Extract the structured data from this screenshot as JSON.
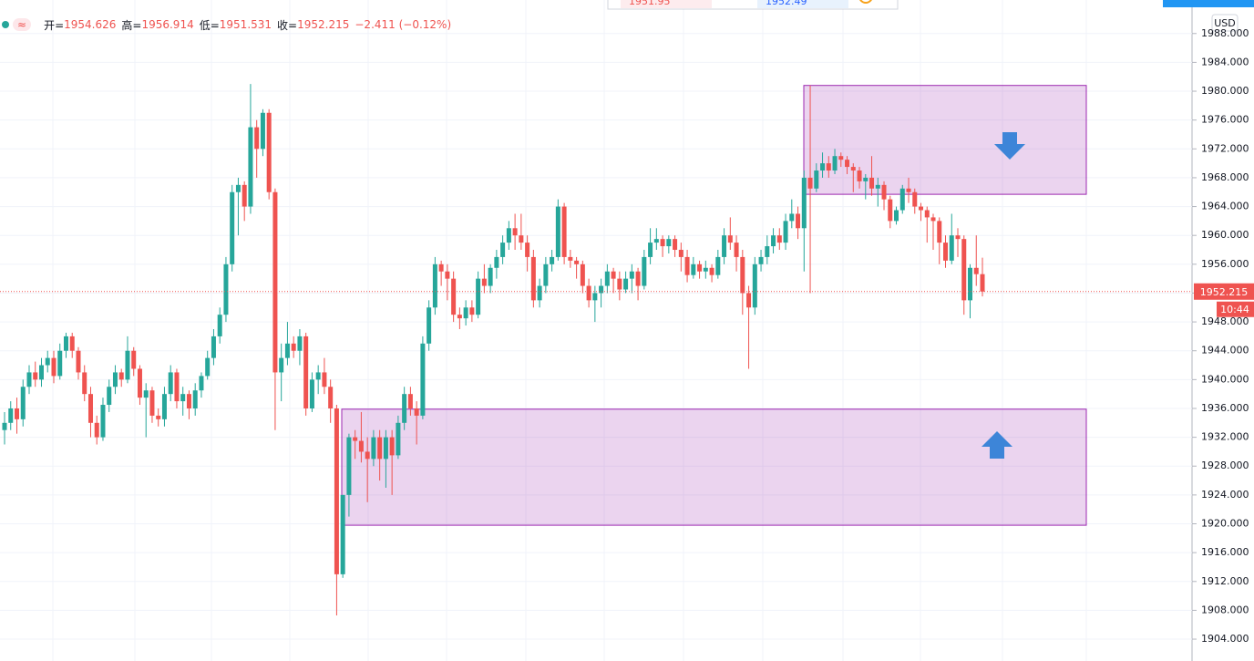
{
  "chart_data": {
    "type": "candlestick",
    "header": [
      {
        "label": "开=",
        "value": "1954.626"
      },
      {
        "label": "高=",
        "value": "1956.914"
      },
      {
        "label": "低=",
        "value": "1951.531"
      },
      {
        "label": "收=",
        "value": "1952.215"
      }
    ],
    "change": "−2.411 (−0.12%)",
    "badge": "≈",
    "currency": "USD",
    "countdown": "10:44",
    "top_quotes": [
      "1951.95",
      "1952.49"
    ],
    "up_color": "#26a69a",
    "down_color": "#ef5350",
    "zone_color": "#9c27b0",
    "grid": true,
    "ylim": [
      1900.97,
      1992.65
    ],
    "yticks": [
      {
        "value": 1904,
        "label": "1904.000"
      },
      {
        "value": 1908,
        "label": "1908.000"
      },
      {
        "value": 1912,
        "label": "1912.000"
      },
      {
        "value": 1916,
        "label": "1916.000"
      },
      {
        "value": 1920,
        "label": "1920.000"
      },
      {
        "value": 1924,
        "label": "1924.000"
      },
      {
        "value": 1928,
        "label": "1928.000"
      },
      {
        "value": 1932,
        "label": "1932.000"
      },
      {
        "value": 1936,
        "label": "1936.000"
      },
      {
        "value": 1940,
        "label": "1940.000"
      },
      {
        "value": 1944,
        "label": "1944.000"
      },
      {
        "value": 1948,
        "label": "1948.000"
      },
      {
        "value": 1952,
        "label": "1952.000"
      },
      {
        "value": 1956,
        "label": "1956.000"
      },
      {
        "value": 1960,
        "label": "1960.000"
      },
      {
        "value": 1964,
        "label": "1964.000"
      },
      {
        "value": 1968,
        "label": "1968.000"
      },
      {
        "value": 1972,
        "label": "1972.000"
      },
      {
        "value": 1976,
        "label": "1976.000"
      },
      {
        "value": 1980,
        "label": "1980.000"
      },
      {
        "value": 1984,
        "label": "1984.000"
      },
      {
        "value": 1988,
        "label": "1988.000"
      }
    ],
    "zones": [
      {
        "high": 1980.8,
        "low": 1965.7
      },
      {
        "high": 1935.9,
        "low": 1919.8
      }
    ],
    "ohlc": [
      [
        1933,
        1935.5,
        1931,
        1934
      ],
      [
        1934,
        1937,
        1933,
        1936
      ],
      [
        1936,
        1937.5,
        1932.5,
        1934.5
      ],
      [
        1934.5,
        1940,
        1933.5,
        1939
      ],
      [
        1939,
        1942,
        1938,
        1941
      ],
      [
        1941,
        1942.5,
        1939,
        1940
      ],
      [
        1940,
        1943,
        1939,
        1942
      ],
      [
        1942,
        1944,
        1941,
        1943
      ],
      [
        1943,
        1944,
        1939.5,
        1940.5
      ],
      [
        1940.5,
        1945,
        1940,
        1944
      ],
      [
        1944,
        1946.5,
        1943,
        1946
      ],
      [
        1946,
        1946.5,
        1943,
        1944
      ],
      [
        1944,
        1944.5,
        1940,
        1941
      ],
      [
        1941,
        1942,
        1937,
        1938
      ],
      [
        1938,
        1939,
        1932,
        1934
      ],
      [
        1934,
        1935,
        1931,
        1932
      ],
      [
        1932,
        1937.5,
        1931.5,
        1936.5
      ],
      [
        1936.5,
        1940,
        1935.5,
        1939
      ],
      [
        1939,
        1942,
        1938,
        1941
      ],
      [
        1941,
        1941.5,
        1939,
        1940
      ],
      [
        1940,
        1946,
        1939.5,
        1944
      ],
      [
        1944,
        1944.5,
        1940.5,
        1941.5
      ],
      [
        1941.5,
        1942,
        1936.5,
        1937.5
      ],
      [
        1937.5,
        1939.5,
        1932,
        1938.5
      ],
      [
        1938.5,
        1939,
        1934,
        1935
      ],
      [
        1935,
        1936,
        1933.5,
        1934.5
      ],
      [
        1934.5,
        1939,
        1933.5,
        1938
      ],
      [
        1938,
        1942,
        1937,
        1941
      ],
      [
        1941,
        1941.5,
        1936,
        1937
      ],
      [
        1937,
        1939,
        1935,
        1938
      ],
      [
        1938,
        1938.5,
        1934.5,
        1936
      ],
      [
        1936,
        1939.5,
        1935,
        1938.5
      ],
      [
        1938.5,
        1941,
        1937.5,
        1940.5
      ],
      [
        1940.5,
        1944,
        1940,
        1943
      ],
      [
        1943,
        1947,
        1942,
        1946
      ],
      [
        1946,
        1950,
        1945,
        1949
      ],
      [
        1949,
        1957,
        1948,
        1956
      ],
      [
        1956,
        1967,
        1955,
        1966
      ],
      [
        1966,
        1968,
        1960,
        1967
      ],
      [
        1967,
        1967.5,
        1962,
        1964
      ],
      [
        1964,
        1981,
        1963,
        1975
      ],
      [
        1975,
        1976,
        1968,
        1972
      ],
      [
        1972,
        1977.5,
        1971,
        1977
      ],
      [
        1977,
        1977.5,
        1965,
        1966
      ],
      [
        1966,
        1966.5,
        1933,
        1941
      ],
      [
        1941,
        1945,
        1937,
        1943
      ],
      [
        1943,
        1948,
        1942,
        1945
      ],
      [
        1945,
        1946,
        1943,
        1944
      ],
      [
        1944,
        1947,
        1942,
        1946
      ],
      [
        1946,
        1946.5,
        1935,
        1936
      ],
      [
        1936,
        1941,
        1935.5,
        1940
      ],
      [
        1940,
        1942,
        1938,
        1941
      ],
      [
        1941,
        1943,
        1938,
        1939
      ],
      [
        1939,
        1940,
        1934,
        1936
      ],
      [
        1936,
        1936.5,
        1907.3,
        1913
      ],
      [
        1913,
        1924,
        1912.5,
        1924
      ],
      [
        1924,
        1932.5,
        1921,
        1932
      ],
      [
        1932,
        1933,
        1929,
        1931.5
      ],
      [
        1931.5,
        1935.5,
        1928.5,
        1930
      ],
      [
        1930,
        1932,
        1923,
        1929
      ],
      [
        1929,
        1933,
        1928,
        1932
      ],
      [
        1932,
        1933,
        1926,
        1929
      ],
      [
        1929,
        1933,
        1925,
        1932
      ],
      [
        1932,
        1933,
        1924,
        1929.5
      ],
      [
        1929.5,
        1935,
        1929,
        1934
      ],
      [
        1934,
        1939,
        1933,
        1938
      ],
      [
        1938,
        1939,
        1935,
        1936
      ],
      [
        1936,
        1937,
        1931,
        1935
      ],
      [
        1935,
        1946,
        1934.5,
        1945
      ],
      [
        1945,
        1951,
        1944,
        1950
      ],
      [
        1950,
        1957,
        1949,
        1956
      ],
      [
        1956,
        1956.5,
        1953,
        1955
      ],
      [
        1955,
        1956,
        1951,
        1954
      ],
      [
        1954,
        1955,
        1948,
        1949
      ],
      [
        1949,
        1950,
        1947,
        1948.5
      ],
      [
        1948.5,
        1951,
        1947.5,
        1950
      ],
      [
        1950,
        1951,
        1948,
        1949
      ],
      [
        1949,
        1955,
        1948.5,
        1954
      ],
      [
        1954,
        1956,
        1952,
        1953
      ],
      [
        1953,
        1956,
        1952,
        1955.5
      ],
      [
        1955.5,
        1958,
        1954,
        1957
      ],
      [
        1957,
        1960,
        1956,
        1959
      ],
      [
        1959,
        1962,
        1958,
        1961
      ],
      [
        1961,
        1963,
        1958,
        1960
      ],
      [
        1960,
        1963,
        1958,
        1959
      ],
      [
        1959,
        1960,
        1955,
        1957
      ],
      [
        1957,
        1958,
        1950,
        1951
      ],
      [
        1951,
        1954,
        1950,
        1953
      ],
      [
        1953,
        1957,
        1952,
        1956
      ],
      [
        1956,
        1958,
        1955,
        1957
      ],
      [
        1957,
        1965,
        1956.5,
        1964
      ],
      [
        1964,
        1964.5,
        1956,
        1957
      ],
      [
        1957,
        1958,
        1955.5,
        1956.5
      ],
      [
        1956.5,
        1957,
        1954,
        1956
      ],
      [
        1956,
        1956.5,
        1952,
        1953
      ],
      [
        1953,
        1954,
        1950,
        1951
      ],
      [
        1951,
        1953,
        1948,
        1952
      ],
      [
        1952,
        1954,
        1950,
        1953
      ],
      [
        1953,
        1956,
        1952,
        1955
      ],
      [
        1955,
        1955.5,
        1952,
        1954
      ],
      [
        1954,
        1955,
        1951,
        1952.5
      ],
      [
        1952.5,
        1955,
        1952,
        1954
      ],
      [
        1954,
        1956,
        1952,
        1955
      ],
      [
        1955,
        1955.5,
        1951,
        1953
      ],
      [
        1953,
        1958,
        1952.5,
        1957
      ],
      [
        1957,
        1961,
        1956,
        1959
      ],
      [
        1959,
        1961,
        1958,
        1959.5
      ],
      [
        1959.5,
        1960,
        1957,
        1958.5
      ],
      [
        1958.5,
        1960,
        1957.5,
        1959.5
      ],
      [
        1959.5,
        1960,
        1957,
        1958
      ],
      [
        1958,
        1959,
        1955,
        1957
      ],
      [
        1957,
        1958,
        1953.5,
        1954.5
      ],
      [
        1954.5,
        1957,
        1954,
        1956
      ],
      [
        1956,
        1956.5,
        1954,
        1955
      ],
      [
        1955,
        1956.5,
        1954,
        1955.5
      ],
      [
        1955.5,
        1956,
        1953.5,
        1954.5
      ],
      [
        1954.5,
        1958,
        1954,
        1957
      ],
      [
        1957,
        1961,
        1956,
        1960
      ],
      [
        1960,
        1962.5,
        1958,
        1959
      ],
      [
        1959,
        1960,
        1955,
        1957
      ],
      [
        1957,
        1958,
        1949,
        1952
      ],
      [
        1952,
        1953,
        1941.5,
        1950
      ],
      [
        1950,
        1957,
        1949,
        1956
      ],
      [
        1956,
        1958,
        1955,
        1957
      ],
      [
        1957,
        1960,
        1956,
        1958.5
      ],
      [
        1958.5,
        1961,
        1957.5,
        1960
      ],
      [
        1960,
        1961,
        1958,
        1959
      ],
      [
        1959,
        1963,
        1958,
        1962
      ],
      [
        1962,
        1965,
        1961,
        1963
      ],
      [
        1963,
        1964,
        1959.5,
        1961
      ],
      [
        1961,
        1969,
        1955,
        1968
      ],
      [
        1968,
        1980.8,
        1952,
        1966.5
      ],
      [
        1966.5,
        1970,
        1966,
        1969
      ],
      [
        1969,
        1971.5,
        1968,
        1970
      ],
      [
        1970,
        1971,
        1968,
        1969
      ],
      [
        1969,
        1972,
        1968.5,
        1971
      ],
      [
        1971,
        1971.5,
        1969.5,
        1970.5
      ],
      [
        1970.5,
        1971,
        1968.5,
        1969.5
      ],
      [
        1969.5,
        1970,
        1966,
        1969
      ],
      [
        1969,
        1969.5,
        1966.5,
        1967.5
      ],
      [
        1967.5,
        1968.5,
        1965,
        1968
      ],
      [
        1968,
        1971,
        1965.5,
        1966.5
      ],
      [
        1966.5,
        1968,
        1964,
        1967
      ],
      [
        1967,
        1967.5,
        1963.5,
        1965
      ],
      [
        1965,
        1965.5,
        1961,
        1962
      ],
      [
        1962,
        1964,
        1961.5,
        1963.5
      ],
      [
        1963.5,
        1967,
        1963,
        1966.5
      ],
      [
        1966.5,
        1968,
        1964.5,
        1966
      ],
      [
        1966,
        1966.5,
        1963,
        1964
      ],
      [
        1964,
        1964.5,
        1962,
        1963.5
      ],
      [
        1963.5,
        1964,
        1959,
        1962.5
      ],
      [
        1962.5,
        1963,
        1958,
        1962
      ],
      [
        1962,
        1962.5,
        1956,
        1959
      ],
      [
        1959,
        1960,
        1955.5,
        1956.5
      ],
      [
        1956.5,
        1963,
        1956,
        1960
      ],
      [
        1960,
        1961,
        1957,
        1959.5
      ],
      [
        1959.5,
        1960,
        1949,
        1951
      ],
      [
        1951,
        1956,
        1948.5,
        1955.5
      ],
      [
        1955.5,
        1960,
        1953,
        1954.626
      ],
      [
        1954.626,
        1956.914,
        1951.531,
        1952.215
      ]
    ]
  }
}
